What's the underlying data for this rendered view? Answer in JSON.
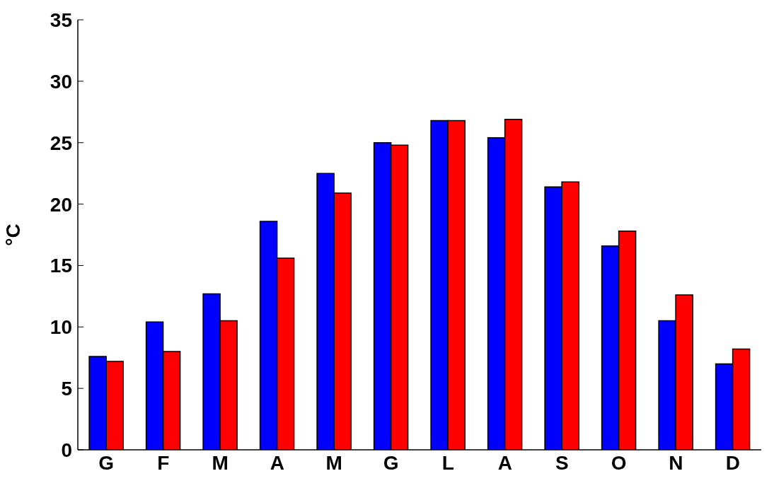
{
  "chart_data": {
    "type": "bar",
    "ylabel": "°C",
    "categories": [
      "G",
      "F",
      "M",
      "A",
      "M",
      "G",
      "L",
      "A",
      "S",
      "O",
      "N",
      "D"
    ],
    "series": [
      {
        "color": "#0000ff",
        "values": [
          7.6,
          10.4,
          12.7,
          18.6,
          22.5,
          25.0,
          26.8,
          25.4,
          21.4,
          16.6,
          10.5,
          7.0
        ]
      },
      {
        "color": "#ff0000",
        "values": [
          7.2,
          8.0,
          10.5,
          15.6,
          20.9,
          24.8,
          26.8,
          26.9,
          21.8,
          17.8,
          12.6,
          8.2
        ]
      }
    ],
    "ylim": [
      0,
      35
    ],
    "yticks": [
      0,
      5,
      10,
      15,
      20,
      25,
      30,
      35
    ],
    "grid": false,
    "legend": false
  }
}
